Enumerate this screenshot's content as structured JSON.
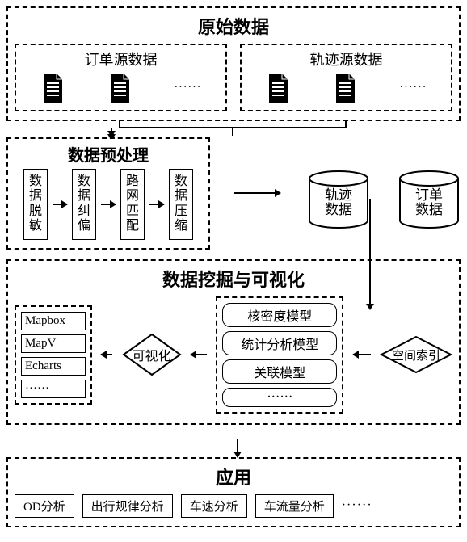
{
  "colors": {
    "line": "#000000",
    "bg": "#ffffff"
  },
  "raw": {
    "title": "原始数据",
    "left": {
      "title": "订单源数据",
      "ellipsis": "······"
    },
    "right": {
      "title": "轨迹源数据",
      "ellipsis": "······"
    }
  },
  "preprocess": {
    "title": "数据预处理",
    "steps": [
      "数据脱敏",
      "数据纠偏",
      "路网匹配",
      "数据压缩"
    ]
  },
  "databases": {
    "traj": "轨迹\n数据",
    "order": "订单\n数据"
  },
  "mining": {
    "title": "数据挖掘与可视化",
    "tools": [
      "Mapbox",
      "MapV",
      "Echarts",
      "······"
    ],
    "vis_label": "可视化",
    "models": [
      "核密度模型",
      "统计分析模型",
      "关联模型",
      "······"
    ],
    "index_label": "空间索引"
  },
  "app": {
    "title": "应用",
    "items": [
      "OD分析",
      "出行规律分析",
      "车速分析",
      "车流量分析"
    ],
    "ellipsis": "······"
  }
}
